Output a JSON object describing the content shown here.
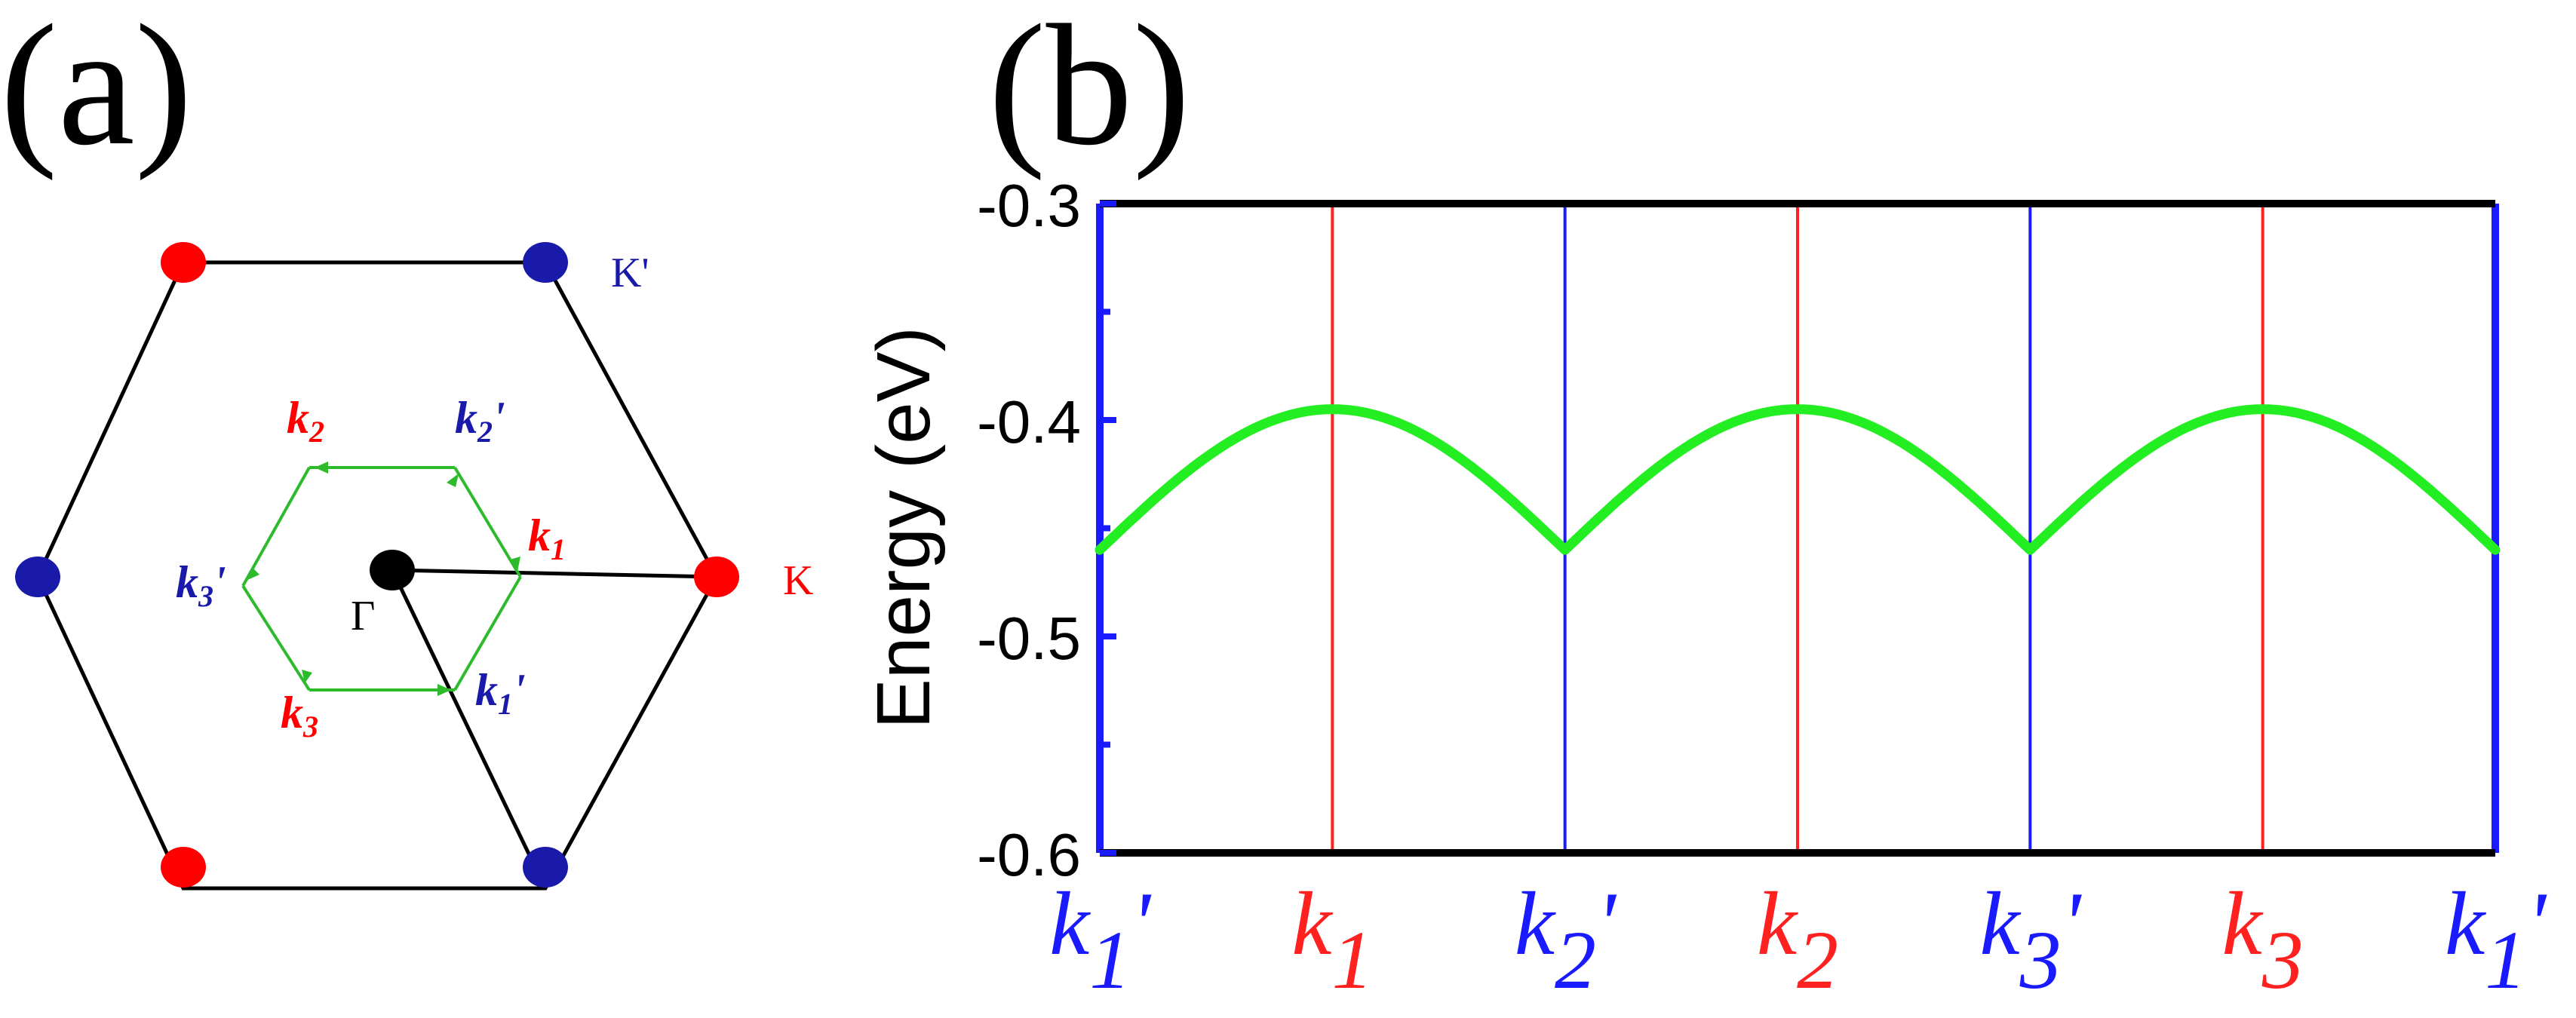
{
  "panel_a": {
    "label": "(a)",
    "gamma_label": "Γ",
    "K_label": "K",
    "Kp_label": "K'",
    "k_points": [
      {
        "name": "k-label-k1",
        "base": "k",
        "sub": "1",
        "prime": "",
        "color": "#ff0000"
      },
      {
        "name": "k-label-k2",
        "base": "k",
        "sub": "2",
        "prime": "",
        "color": "#ff0000"
      },
      {
        "name": "k-label-k3",
        "base": "k",
        "sub": "3",
        "prime": "",
        "color": "#ff0000"
      },
      {
        "name": "k-label-k1p",
        "base": "k",
        "sub": "1",
        "prime": "'",
        "color": "#1a1aaa"
      },
      {
        "name": "k-label-k2p",
        "base": "k",
        "sub": "2",
        "prime": "'",
        "color": "#1a1aaa"
      },
      {
        "name": "k-label-k3p",
        "base": "k",
        "sub": "3",
        "prime": "'",
        "color": "#1a1aaa"
      }
    ],
    "colors": {
      "K": "#ff0000",
      "Kp": "#1a1aaa",
      "gamma": "#000000",
      "inner_hexagon": "#2dbb2d",
      "outer_hexagon": "#000000"
    }
  },
  "panel_b": {
    "label": "(b)"
  },
  "chart_data": {
    "type": "line",
    "ylabel": "Energy (eV)",
    "ylim": [
      -0.6,
      -0.3
    ],
    "yticks": [
      "-0.3",
      "-0.4",
      "-0.5",
      "-0.6"
    ],
    "ytick_values": [
      -0.3,
      -0.4,
      -0.5,
      -0.6
    ],
    "x_categories": [
      {
        "base": "k",
        "sub": "1",
        "prime": "'",
        "color": "#1a1aff"
      },
      {
        "base": "k",
        "sub": "1",
        "prime": "",
        "color": "#ff2020"
      },
      {
        "base": "k",
        "sub": "2",
        "prime": "'",
        "color": "#1a1aff"
      },
      {
        "base": "k",
        "sub": "2",
        "prime": "",
        "color": "#ff2020"
      },
      {
        "base": "k",
        "sub": "3",
        "prime": "'",
        "color": "#1a1aff"
      },
      {
        "base": "k",
        "sub": "3",
        "prime": "",
        "color": "#ff2020"
      },
      {
        "base": "k",
        "sub": "1",
        "prime": "'",
        "color": "#1a1aff"
      }
    ],
    "series": [
      {
        "color": "#22ee22",
        "x": [
          0,
          1,
          2,
          3,
          4,
          5,
          6
        ],
        "y": [
          -0.46,
          -0.395,
          -0.46,
          -0.395,
          -0.46,
          -0.395,
          -0.46
        ]
      }
    ],
    "grid": false
  }
}
